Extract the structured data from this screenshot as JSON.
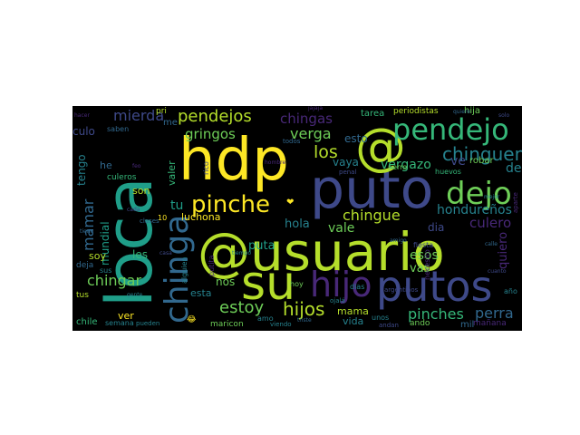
{
  "palette": {
    "yellow": "#fde725",
    "yellow_green": "#b5de2b",
    "green": "#6ece58",
    "teal_green": "#35b779",
    "teal": "#1f9e89",
    "cyan": "#26828e",
    "blue": "#31688e",
    "indigo": "#3e4989",
    "purple": "#482878",
    "dark_purple": "#440154"
  },
  "cloud": {
    "words": [
      {
        "t": "hdp",
        "c": "#fde725"
      },
      {
        "t": "@usuario",
        "c": "#b5de2b"
      },
      {
        "t": "puto",
        "c": "#3e4989"
      },
      {
        "t": "loca",
        "c": "#1f9e89"
      },
      {
        "t": "@",
        "c": "#b5de2b"
      },
      {
        "t": "pendejo",
        "c": "#35b779"
      },
      {
        "t": "su",
        "c": "#b5de2b"
      },
      {
        "t": "putos",
        "c": "#3e4989"
      },
      {
        "t": "hijo",
        "c": "#482878"
      },
      {
        "t": "chinga",
        "c": "#31688e"
      },
      {
        "t": "dejo",
        "c": "#6ece58"
      },
      {
        "t": "pinche",
        "c": "#fde725"
      },
      {
        "t": "pendejos",
        "c": "#b5de2b"
      },
      {
        "t": "mierda",
        "c": "#3e4989"
      },
      {
        "t": "chingas",
        "c": "#482878"
      },
      {
        "t": "chinguen",
        "c": "#26828e"
      },
      {
        "t": "gringos",
        "c": "#6ece58"
      },
      {
        "t": "verga",
        "c": "#6ece58"
      },
      {
        "t": "los",
        "c": "#b5de2b"
      },
      {
        "t": "vergazo",
        "c": "#35b779"
      },
      {
        "t": "estoy",
        "c": "#6ece58"
      },
      {
        "t": "hijos",
        "c": "#b5de2b"
      },
      {
        "t": "pinches",
        "c": "#35b779"
      },
      {
        "t": "perra",
        "c": "#31688e"
      },
      {
        "t": "hondureños",
        "c": "#26828e"
      },
      {
        "t": "culero",
        "c": "#482878"
      },
      {
        "t": "chingue",
        "c": "#b5de2b"
      },
      {
        "t": "mamar",
        "c": "#31688e"
      },
      {
        "t": "chingar",
        "c": "#6ece58"
      },
      {
        "t": "mundial",
        "c": "#1f9e89"
      },
      {
        "t": "puta",
        "c": "#1f9e89"
      },
      {
        "t": "hola",
        "c": "#26828e"
      },
      {
        "t": "vale",
        "c": "#6ece58"
      },
      {
        "t": "vaya",
        "c": "#26828e"
      },
      {
        "t": "tu",
        "c": "#1f9e89"
      },
      {
        "t": "luchona",
        "c": "#fde725"
      },
      {
        "t": "esos",
        "c": "#6ece58"
      },
      {
        "t": "vas",
        "c": "#6ece58"
      },
      {
        "t": "dia",
        "c": "#3e4989"
      },
      {
        "t": "soy",
        "c": "#b5de2b"
      },
      {
        "t": "mama",
        "c": "#b5de2b"
      },
      {
        "t": "vida",
        "c": "#26828e"
      },
      {
        "t": "nos",
        "c": "#6ece58"
      },
      {
        "t": "esta",
        "c": "#26828e"
      },
      {
        "t": "les",
        "c": "#35b779"
      },
      {
        "t": "son",
        "c": "#b5de2b"
      },
      {
        "t": "culo",
        "c": "#3e4989"
      },
      {
        "t": "tengo",
        "c": "#26828e"
      },
      {
        "t": "valer",
        "c": "#35b779"
      },
      {
        "t": "ver",
        "c": "#fde725"
      },
      {
        "t": "esto",
        "c": "#31688e"
      },
      {
        "t": "de",
        "c": "#26828e"
      },
      {
        "t": "ve",
        "c": "#3e4989"
      },
      {
        "t": "quiero",
        "c": "#482878"
      },
      {
        "t": "mil",
        "c": "#31688e"
      },
      {
        "t": "hija",
        "c": "#6ece58"
      },
      {
        "t": "tarea",
        "c": "#35b779"
      },
      {
        "t": "periodistas",
        "c": "#b5de2b"
      },
      {
        "t": "robar",
        "c": "#6ece58"
      },
      {
        "t": "culeros",
        "c": "#35b779"
      },
      {
        "t": "chile",
        "c": "#35b779"
      },
      {
        "t": "semana",
        "c": "#26828e"
      },
      {
        "t": "tus",
        "c": "#b5de2b"
      },
      {
        "t": "me",
        "c": "#31688e"
      },
      {
        "t": "he",
        "c": "#31688e"
      },
      {
        "t": "deja",
        "c": "#31688e"
      },
      {
        "t": "sus",
        "c": "#26828e"
      },
      {
        "t": "maricon",
        "c": "#6ece58"
      },
      {
        "t": "amo",
        "c": "#26828e"
      },
      {
        "t": "ando",
        "c": "#6ece58"
      },
      {
        "t": "mañana",
        "c": "#482878"
      },
      {
        "t": "necesito",
        "c": "#482878"
      },
      {
        "t": "huevos",
        "c": "#35b779"
      },
      {
        "t": "hoy",
        "c": "#6ece58"
      },
      {
        "t": "dias",
        "c": "#26828e"
      },
      {
        "t": "unos",
        "c": "#26828e"
      },
      {
        "t": "fiesta",
        "c": "#3e4989"
      },
      {
        "t": "alguien",
        "c": "#26828e"
      },
      {
        "t": "putita",
        "c": "#482878"
      },
      {
        "t": "perro",
        "c": "#6ece58"
      },
      {
        "t": "saben",
        "c": "#31688e"
      },
      {
        "t": "pri",
        "c": "#b5de2b"
      },
      {
        "t": "todos",
        "c": "#31688e"
      },
      {
        "t": "viendo",
        "c": "#26828e"
      },
      {
        "t": "pueden",
        "c": "#26828e"
      },
      {
        "t": "ojalá",
        "c": "#26828e"
      },
      {
        "t": "año",
        "c": "#26828e"
      },
      {
        "t": "clases",
        "c": "#31688e"
      },
      {
        "t": "rico",
        "c": "#3e4989"
      },
      {
        "t": "penal",
        "c": "#3e4989"
      },
      {
        "t": "andan",
        "c": "#3e4989"
      },
      {
        "t": "aparte",
        "c": "#482878"
      },
      {
        "t": "10",
        "c": "#fde725"
      },
      {
        "t": "❤",
        "c": "#fde725"
      },
      {
        "t": "😂",
        "c": "#fde725"
      },
      {
        "t": "argentinos",
        "c": "#3e4989"
      },
      {
        "t": "cuanto",
        "c": "#3e4989"
      },
      {
        "t": "cada",
        "c": "#3e4989"
      },
      {
        "t": "tiene",
        "c": "#31688e"
      },
      {
        "t": "quiere",
        "c": "#31688e"
      },
      {
        "t": "hacer",
        "c": "#482878"
      },
      {
        "t": "jajaja",
        "c": "#482878"
      },
      {
        "t": "calle",
        "c": "#31688e"
      },
      {
        "t": "triste",
        "c": "#31688e"
      },
      {
        "t": "tiempo",
        "c": "#26828e"
      },
      {
        "t": "gente",
        "c": "#26828e"
      },
      {
        "t": "mejor",
        "c": "#26828e"
      },
      {
        "t": "solo",
        "c": "#3e4989"
      },
      {
        "t": "hombre",
        "c": "#482878"
      },
      {
        "t": "casa",
        "c": "#3e4989"
      },
      {
        "t": "amigo",
        "c": "#31688e"
      },
      {
        "t": "feo",
        "c": "#482878"
      }
    ]
  }
}
